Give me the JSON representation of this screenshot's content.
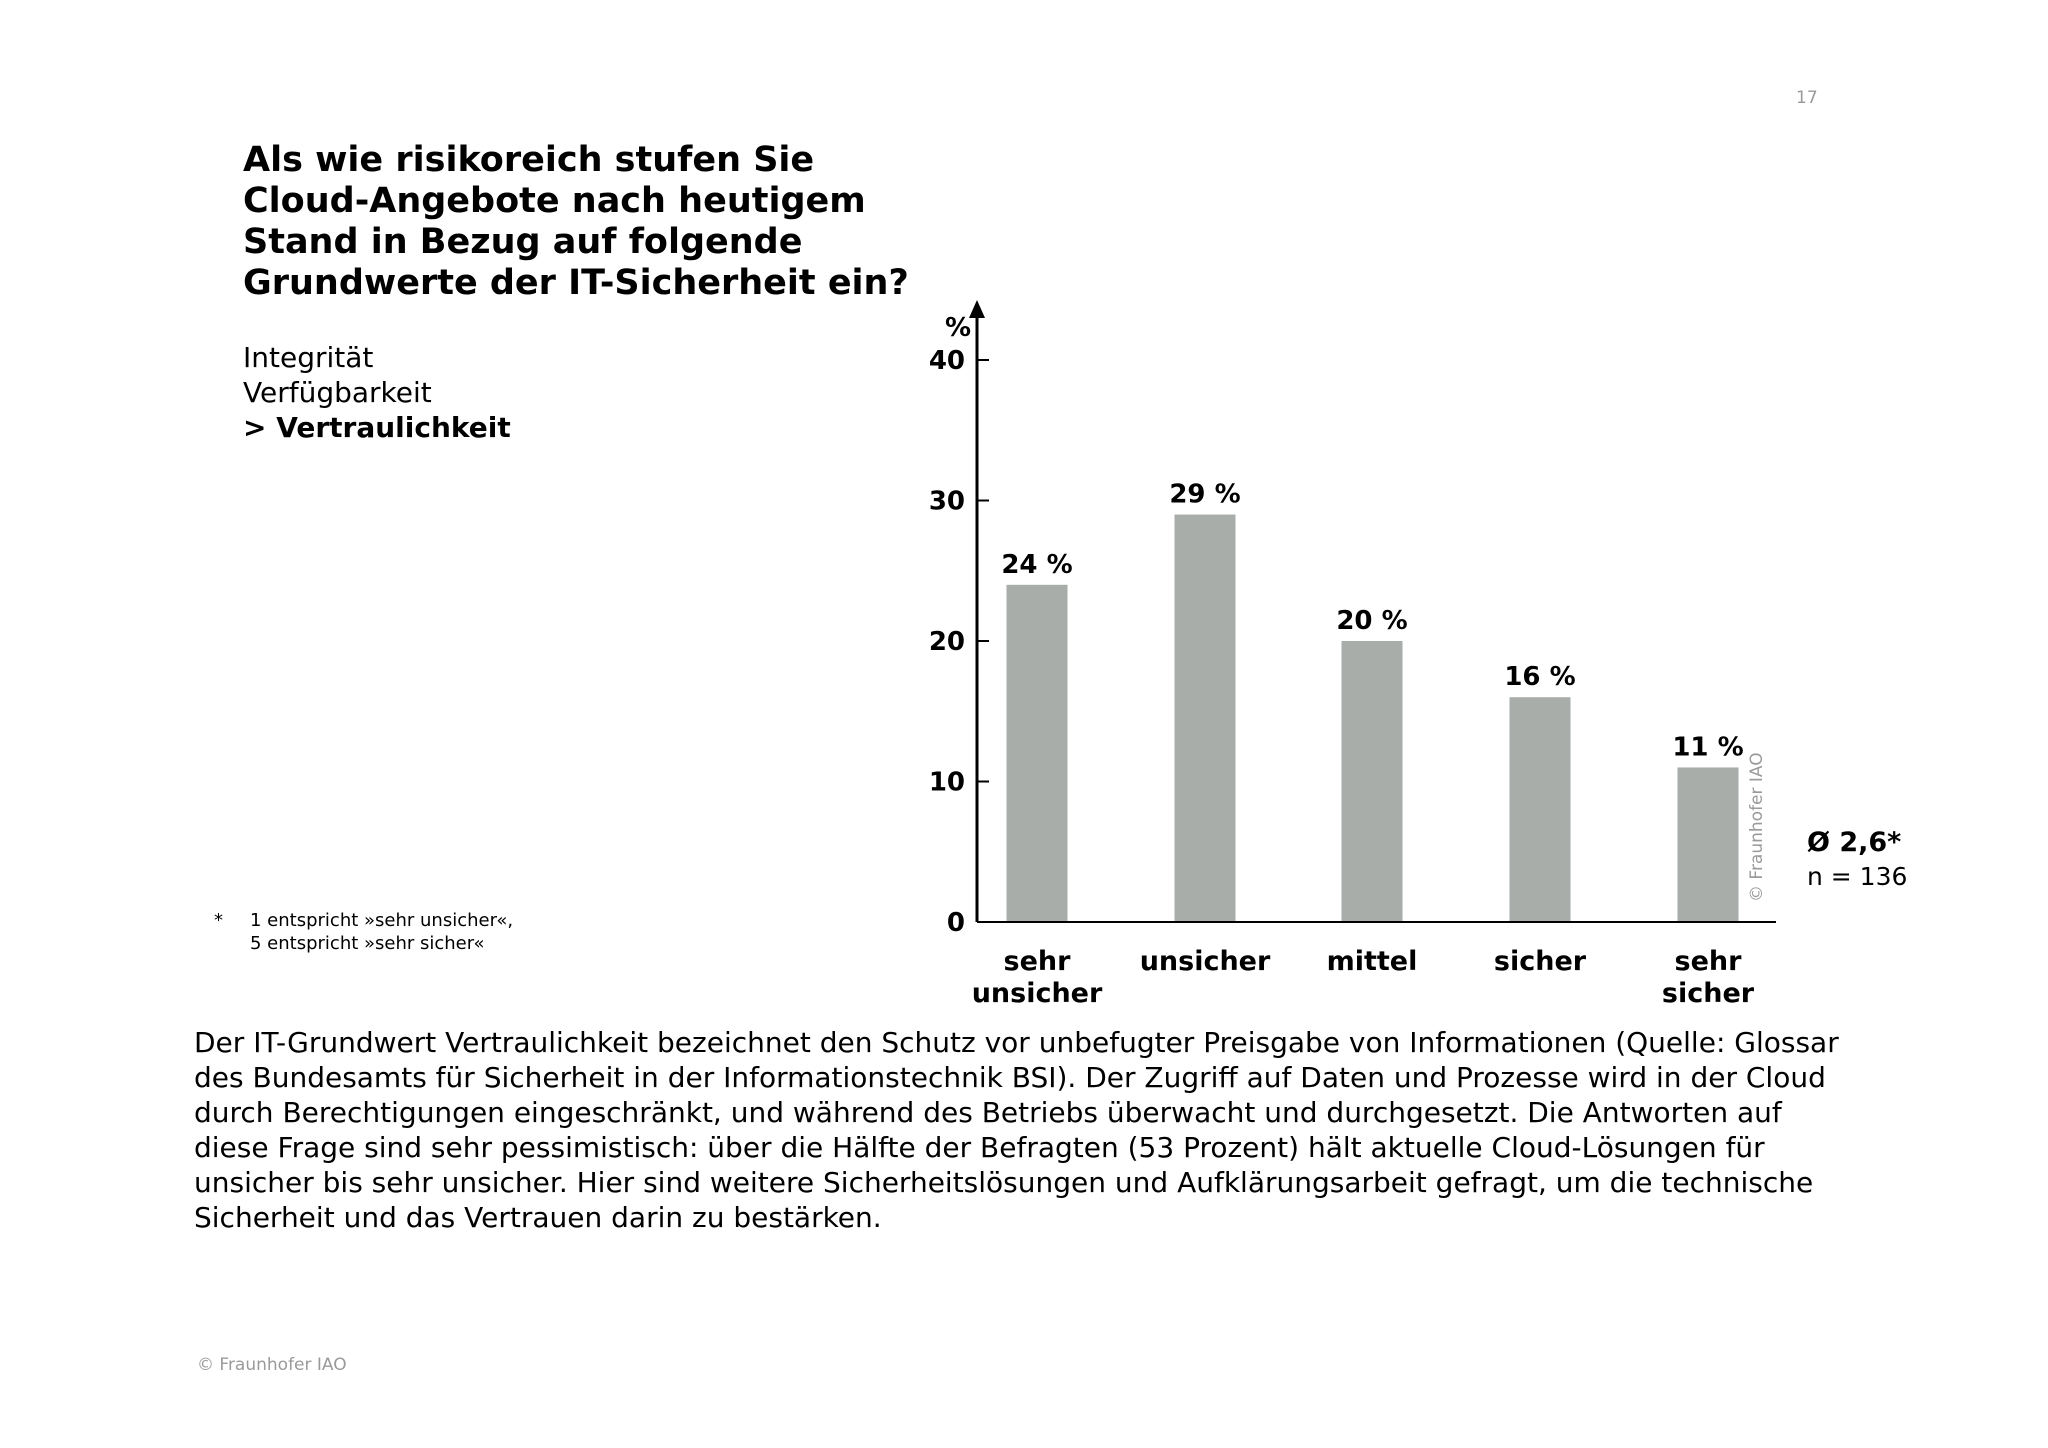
{
  "page_number": "17",
  "question": "Als wie risikoreich stufen Sie Cloud-Angebote nach heutigem Stand in Bezug auf folgende Grundwerte der IT-Sicherheit ein?",
  "values_list": [
    "Integrität",
    "Verfügbarkeit"
  ],
  "values_selected": "> Vertraulichkeit",
  "footnote": {
    "marker": "*",
    "line1": "1 entspricht »sehr unsicher«,",
    "line2": "5 entspricht »sehr sicher«"
  },
  "chart_data": {
    "type": "bar",
    "title": "",
    "ylabel": "%",
    "xlabel": "",
    "ylim": [
      0,
      40
    ],
    "yticks": [
      0,
      10,
      20,
      30,
      40
    ],
    "categories": [
      [
        "sehr",
        "unsicher"
      ],
      [
        "unsicher"
      ],
      [
        "mittel"
      ],
      [
        "sicher"
      ],
      [
        "sehr",
        "sicher"
      ]
    ],
    "values": [
      24,
      29,
      20,
      16,
      11
    ],
    "value_labels": [
      "24 %",
      "29 %",
      "20 %",
      "16 %",
      "11 %"
    ],
    "bar_color": "#a9adaa",
    "grid": false,
    "watermark": "© Fraunhofer IAO"
  },
  "average": "Ø 2,6*",
  "sample_size": "n = 136",
  "description": "Der IT-Grundwert Vertraulichkeit bezeichnet den Schutz vor unbefugter Preisgabe von Informationen (Quelle: Glossar des Bundesamts für Sicherheit in der Informationstechnik BSI). Der Zugriff auf Daten und Prozesse wird in der Cloud durch Berechtigungen eingeschränkt, und während des Betriebs überwacht und durchgesetzt. Die Antworten auf diese Frage sind sehr pessimistisch: über die Hälfte der Befragten (53 Prozent) hält aktuelle Cloud-Lösungen für unsicher bis sehr unsicher. Hier sind weitere Sicherheitslösungen und Aufklärungsarbeit gefragt, um die technische Sicherheit und das Vertrauen darin zu bestärken.",
  "copyright": "© Fraunhofer IAO"
}
